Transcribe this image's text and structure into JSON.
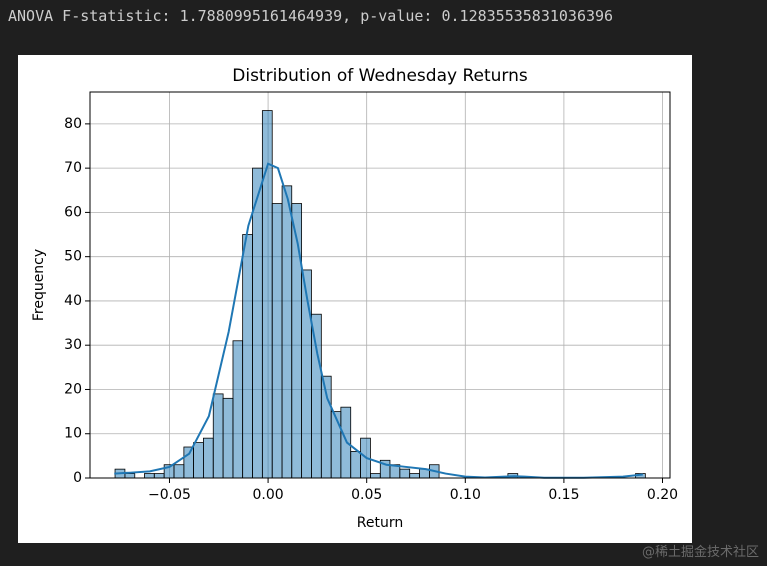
{
  "header": {
    "text": "ANOVA F-statistic: 1.7880995161464939, p-value: 0.12835535831036396"
  },
  "watermark": "@稀土掘金技术社区",
  "chart_data": {
    "type": "histogram",
    "title": "Distribution of Wednesday Returns",
    "x_label": "Return",
    "y_label": "Frequency",
    "color": "#1f77b4",
    "edge_color": "#000000",
    "grid": true,
    "bins": [
      -0.0776,
      -0.0726,
      -0.0676,
      -0.0627,
      -0.0577,
      -0.0527,
      -0.0477,
      -0.0427,
      -0.0378,
      -0.0328,
      -0.0278,
      -0.0228,
      -0.0178,
      -0.0129,
      -0.0079,
      -0.0029,
      0.0021,
      0.0071,
      0.012,
      0.017,
      0.022,
      0.027,
      0.032,
      0.0369,
      0.0419,
      0.0469,
      0.0519,
      0.0569,
      0.0618,
      0.0668,
      0.0718,
      0.0768,
      0.0818,
      0.0867,
      0.0917,
      0.0967,
      0.1017,
      0.1067,
      0.1116,
      0.1166,
      0.1216,
      0.1266,
      0.1316,
      0.1365,
      0.1415,
      0.1465,
      0.1515,
      0.1565,
      0.1614,
      0.1664,
      0.1714,
      0.1764,
      0.1814,
      0.1863,
      0.1913
    ],
    "values": [
      2,
      1,
      0,
      1,
      1,
      3,
      3,
      7,
      8,
      9,
      19,
      18,
      31,
      55,
      70,
      83,
      62,
      66,
      62,
      47,
      37,
      23,
      15,
      16,
      6,
      9,
      1,
      4,
      3,
      2,
      1,
      2,
      3,
      0,
      0,
      0,
      0,
      0,
      0,
      0,
      1,
      0,
      0,
      0,
      0,
      0,
      0,
      0,
      0,
      0,
      0,
      0,
      0,
      1
    ],
    "kde": {
      "color": "#1f77b4",
      "x": [
        -0.078,
        -0.07,
        -0.06,
        -0.05,
        -0.04,
        -0.03,
        -0.02,
        -0.01,
        0,
        0.005,
        0.01,
        0.015,
        0.02,
        0.025,
        0.03,
        0.04,
        0.05,
        0.06,
        0.07,
        0.08,
        0.09,
        0.1,
        0.11,
        0.12,
        0.125,
        0.13,
        0.14,
        0.16,
        0.18,
        0.19
      ],
      "values": [
        1,
        1.2,
        1.5,
        2.5,
        5.5,
        14,
        33,
        57,
        71,
        70,
        63,
        53,
        40,
        28,
        18,
        8,
        4.5,
        3,
        2.5,
        2,
        1,
        0.3,
        0.1,
        0.3,
        0.4,
        0.3,
        0.05,
        0.05,
        0.3,
        0.8
      ]
    },
    "xlim": [
      -0.0903,
      0.2038
    ],
    "ylim": [
      0,
      87.2
    ],
    "xticks": [
      {
        "value": -0.05,
        "label": "−0.05"
      },
      {
        "value": 0,
        "label": "0.00"
      },
      {
        "value": 0.05,
        "label": "0.05"
      },
      {
        "value": 0.1,
        "label": "0.10"
      },
      {
        "value": 0.15,
        "label": "0.15"
      },
      {
        "value": 0.2,
        "label": "0.20"
      }
    ],
    "yticks": [
      0,
      10,
      20,
      30,
      40,
      50,
      60,
      70,
      80
    ]
  }
}
